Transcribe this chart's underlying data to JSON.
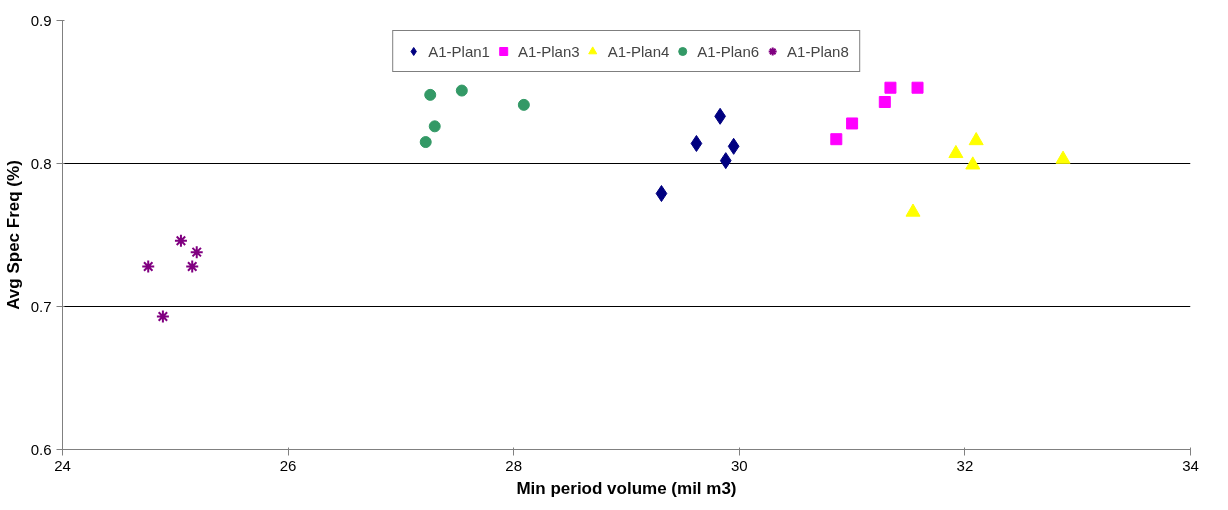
{
  "chart_data": {
    "type": "scatter",
    "xlabel": "Min period volume (mil m3)",
    "ylabel": "Avg Spec Freq (%)",
    "xlim": [
      24,
      34
    ],
    "xticks": [
      24,
      26,
      28,
      30,
      32,
      34
    ],
    "ylim": [
      0.6,
      0.9
    ],
    "yticks": [
      0.6,
      0.7,
      0.8,
      0.9
    ],
    "grid": "y",
    "legend": "top",
    "series": [
      {
        "name": "A1-Plan1",
        "color": "#000080",
        "marker": "diamond",
        "x": [
          29.31,
          29.62,
          29.83,
          29.88,
          29.95
        ],
        "values": [
          0.779,
          0.814,
          0.833,
          0.802,
          0.812
        ]
      },
      {
        "name": "A1-Plan3",
        "color": "#ff00ff",
        "marker": "square",
        "x": [
          30.86,
          31.0,
          31.29,
          31.34,
          31.58
        ],
        "values": [
          0.817,
          0.828,
          0.843,
          0.853,
          0.853
        ]
      },
      {
        "name": "A1-Plan4",
        "color": "#ffff00",
        "marker": "triangle",
        "x": [
          31.54,
          31.92,
          32.07,
          32.1,
          32.87
        ],
        "values": [
          0.766,
          0.807,
          0.799,
          0.816,
          0.803
        ]
      },
      {
        "name": "A1-Plan6",
        "color": "#339966",
        "marker": "circle",
        "x": [
          27.22,
          27.26,
          27.3,
          27.54,
          28.09
        ],
        "values": [
          0.815,
          0.848,
          0.826,
          0.851,
          0.841
        ]
      },
      {
        "name": "A1-Plan8",
        "color": "#800080",
        "marker": "cross",
        "x": [
          24.76,
          24.89,
          25.05,
          25.15,
          25.19
        ],
        "values": [
          0.728,
          0.693,
          0.746,
          0.728,
          0.738
        ]
      }
    ]
  }
}
